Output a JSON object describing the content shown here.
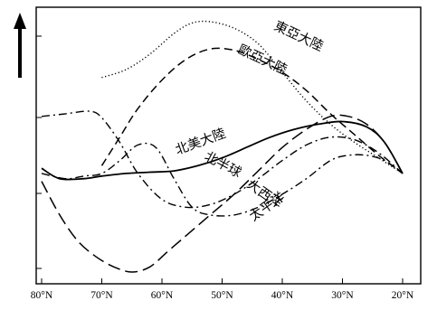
{
  "chart_data": {
    "type": "line",
    "title": "",
    "xlabel": "",
    "ylabel": "",
    "x_ticks": [
      "80°N",
      "70°N",
      "60°N",
      "50°N",
      "40°N",
      "30°N",
      "20°N"
    ],
    "xlim": [
      80,
      20
    ],
    "y_axis": "arrow up, no tick labels",
    "grid": false,
    "series": [
      {
        "name": "東亞大陸",
        "style": "dotted",
        "x": [
          70,
          66,
          62,
          58,
          55,
          52,
          48,
          44,
          40,
          36,
          32,
          28,
          24,
          20
        ],
        "y": [
          0.75,
          0.78,
          0.84,
          0.92,
          0.96,
          0.965,
          0.94,
          0.88,
          0.77,
          0.66,
          0.57,
          0.5,
          0.44,
          0.38
        ]
      },
      {
        "name": "歐亞大陸",
        "style": "dashed",
        "x": [
          70,
          67,
          64,
          60,
          56,
          52,
          48,
          44,
          40,
          36,
          32,
          28,
          24,
          20
        ],
        "y": [
          0.41,
          0.52,
          0.63,
          0.74,
          0.82,
          0.86,
          0.855,
          0.82,
          0.77,
          0.7,
          0.61,
          0.53,
          0.45,
          0.38
        ]
      },
      {
        "name": "北美大陸",
        "style": "dash-dot",
        "x": [
          80,
          76,
          72,
          70,
          67,
          64,
          60,
          56,
          52,
          48,
          44,
          40,
          36,
          32,
          28,
          24,
          20
        ],
        "y": [
          0.6,
          0.61,
          0.62,
          0.595,
          0.5,
          0.38,
          0.28,
          0.25,
          0.26,
          0.3,
          0.36,
          0.43,
          0.49,
          0.52,
          0.51,
          0.46,
          0.38
        ]
      },
      {
        "name": "北半球",
        "style": "solid",
        "x": [
          80,
          77,
          73,
          70,
          66,
          62,
          58,
          54,
          50,
          46,
          42,
          38,
          34,
          30,
          26,
          23,
          20
        ],
        "y": [
          0.4,
          0.36,
          0.36,
          0.37,
          0.38,
          0.385,
          0.39,
          0.41,
          0.44,
          0.48,
          0.52,
          0.55,
          0.57,
          0.58,
          0.56,
          0.5,
          0.38
        ]
      },
      {
        "name": "大西洋",
        "style": "long-dash",
        "x": [
          80,
          77,
          74,
          71,
          68,
          65,
          62,
          59,
          56,
          52,
          48,
          44,
          40,
          36,
          32,
          29,
          26,
          23,
          20
        ],
        "y": [
          0.35,
          0.22,
          0.12,
          0.06,
          0.02,
          0.0,
          0.02,
          0.08,
          0.14,
          0.22,
          0.3,
          0.39,
          0.48,
          0.55,
          0.6,
          0.6,
          0.57,
          0.5,
          0.38
        ]
      },
      {
        "name": "太平洋",
        "style": "dash-dot",
        "x": [
          80,
          76,
          73,
          70,
          67,
          64,
          61,
          58,
          55,
          52,
          48,
          44,
          40,
          36,
          32,
          29,
          26,
          23,
          20
        ],
        "y": [
          0.38,
          0.36,
          0.37,
          0.38,
          0.43,
          0.49,
          0.48,
          0.36,
          0.25,
          0.22,
          0.22,
          0.25,
          0.3,
          0.36,
          0.43,
          0.45,
          0.45,
          0.43,
          0.38
        ]
      }
    ]
  }
}
